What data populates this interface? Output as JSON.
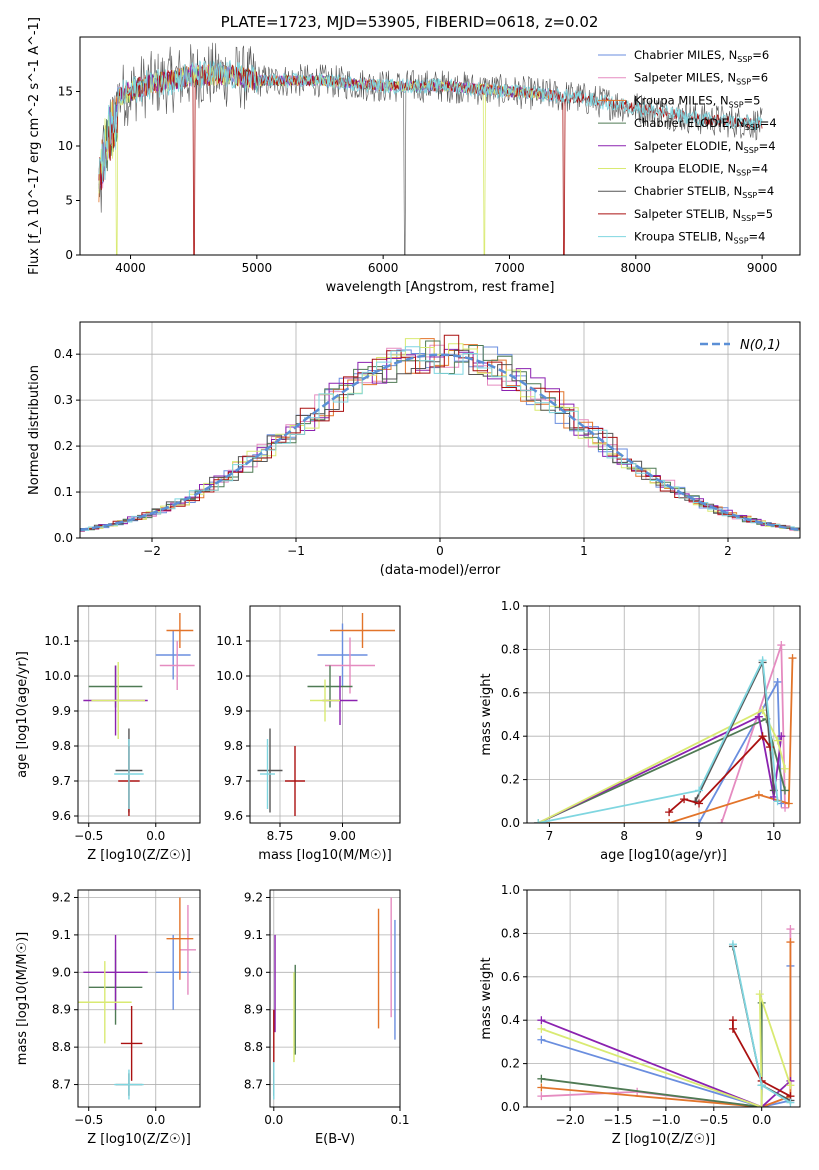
{
  "page": {
    "title": "PLATE=1723, MJD=53905, FIBERID=0618, z=0.02"
  },
  "colors": {
    "chabrier_miles": "#6a8edf",
    "salpeter_miles": "#e58bc0",
    "kroupa_miles": "#e2742a",
    "chabrier_elodie": "#4f7a54",
    "salpeter_elodie": "#8b22b0",
    "kroupa_elodie": "#d9ea72",
    "chabrier_stelib": "#555555",
    "salpeter_stelib": "#aa1111",
    "kroupa_stelib": "#7fd6e0",
    "gauss": "#5b8fd6"
  },
  "chart_data": [
    {
      "id": "spectrum",
      "type": "line",
      "xlabel": "wavelength [Angstrom, rest frame]",
      "ylabel": "Flux [f_λ 10^-17 erg cm^-2 s^-1 A^-1]",
      "xlim": [
        3600,
        9300
      ],
      "ylim": [
        0,
        20
      ],
      "xticks": [
        4000,
        5000,
        6000,
        7000,
        8000,
        9000
      ],
      "yticks": [
        0,
        5,
        10,
        15
      ],
      "grid": false,
      "legend_position": "top-right",
      "data_profile": {
        "x": [
          3750,
          3800,
          3900,
          4000,
          4100,
          4300,
          4500,
          4800,
          5000,
          5200,
          5500,
          6000,
          6500,
          7000,
          7500,
          8000,
          8500,
          9000
        ],
        "y": [
          8,
          12,
          14.5,
          15,
          15.5,
          16,
          16.5,
          16.5,
          16,
          16,
          16,
          15.5,
          15.5,
          15,
          14.5,
          13.5,
          12.5,
          12
        ]
      },
      "series": [
        {
          "name": "Chabrier MILES, N_SSP=6",
          "label_main": "Chabrier MILES, N",
          "label_sub": "SSP",
          "label_tail": "=6",
          "color_key": "chabrier_miles"
        },
        {
          "name": "Salpeter MILES, N_SSP=6",
          "label_main": "Salpeter MILES, N",
          "label_sub": "SSP",
          "label_tail": "=6",
          "color_key": "salpeter_miles"
        },
        {
          "name": "Kroupa MILES, N_SSP=5",
          "label_main": "Kroupa MILES, N",
          "label_sub": "SSP",
          "label_tail": "=5",
          "color_key": "kroupa_miles"
        },
        {
          "name": "Chabrier ELODIE, N_SSP=4",
          "label_main": "Chabrier ELODIE, N",
          "label_sub": "SSP",
          "label_tail": "=4",
          "color_key": "chabrier_elodie"
        },
        {
          "name": "Salpeter ELODIE, N_SSP=4",
          "label_main": "Salpeter ELODIE, N",
          "label_sub": "SSP",
          "label_tail": "=4",
          "color_key": "salpeter_elodie"
        },
        {
          "name": "Kroupa ELODIE, N_SSP=4",
          "label_main": "Kroupa ELODIE, N",
          "label_sub": "SSP",
          "label_tail": "=4",
          "color_key": "kroupa_elodie"
        },
        {
          "name": "Chabrier STELIB, N_SSP=4",
          "label_main": "Chabrier STELIB, N",
          "label_sub": "SSP",
          "label_tail": "=4",
          "color_key": "chabrier_stelib"
        },
        {
          "name": "Salpeter STELIB, N_SSP=5",
          "label_main": "Salpeter STELIB, N",
          "label_sub": "SSP",
          "label_tail": "=5",
          "color_key": "salpeter_stelib"
        },
        {
          "name": "Kroupa STELIB, N_SSP=4",
          "label_main": "Kroupa STELIB, N",
          "label_sub": "SSP",
          "label_tail": "=4",
          "color_key": "kroupa_stelib"
        }
      ]
    },
    {
      "id": "residuals",
      "type": "line",
      "xlabel": "(data-model)/error",
      "ylabel": "Normed distribution",
      "xlim": [
        -2.5,
        2.5
      ],
      "ylim": [
        0,
        0.47
      ],
      "xticks": [
        -2,
        -1,
        0,
        1,
        2
      ],
      "yticks": [
        0.0,
        0.1,
        0.2,
        0.3,
        0.4
      ],
      "grid": true,
      "legend_position": "top-right",
      "legend": "N(0,1)",
      "gauss_mean": 0,
      "gauss_sigma": 1
    },
    {
      "id": "age_vs_Z",
      "type": "scatter",
      "xlabel": "Z [log10(Z/Z☉)]",
      "ylabel": "age [log10(age/yr)]",
      "xlim": [
        -0.58,
        0.33
      ],
      "ylim": [
        9.58,
        10.2
      ],
      "xticks": [
        -0.5,
        0.0
      ],
      "yticks": [
        9.6,
        9.7,
        9.8,
        9.9,
        10.0,
        10.1
      ],
      "grid": true,
      "points": [
        {
          "k": "chabrier_miles",
          "x": 0.13,
          "xe": 0.13,
          "y": 10.06,
          "ye": 0.07
        },
        {
          "k": "salpeter_miles",
          "x": 0.16,
          "xe": 0.13,
          "y": 10.03,
          "ye": 0.07
        },
        {
          "k": "kroupa_miles",
          "x": 0.18,
          "xe": 0.1,
          "y": 10.13,
          "ye": 0.05
        },
        {
          "k": "chabrier_elodie",
          "x": -0.3,
          "xe": 0.2,
          "y": 9.97,
          "ye": 0.06
        },
        {
          "k": "salpeter_elodie",
          "x": -0.3,
          "xe": 0.24,
          "y": 9.93,
          "ye": 0.1
        },
        {
          "k": "kroupa_elodie",
          "x": -0.28,
          "xe": 0.2,
          "y": 9.93,
          "ye": 0.11
        },
        {
          "k": "chabrier_stelib",
          "x": -0.2,
          "xe": 0.1,
          "y": 9.73,
          "ye": 0.12
        },
        {
          "k": "salpeter_stelib",
          "x": -0.2,
          "xe": 0.08,
          "y": 9.7,
          "ye": 0.1
        },
        {
          "k": "kroupa_stelib",
          "x": -0.2,
          "xe": 0.11,
          "y": 9.72,
          "ye": 0.1
        }
      ]
    },
    {
      "id": "age_vs_mass",
      "type": "scatter",
      "xlabel": "mass [log10(M/M☉)]",
      "ylabel": "",
      "xlim": [
        8.63,
        9.23
      ],
      "ylim": [
        9.58,
        10.2
      ],
      "xticks": [
        8.75,
        9.0
      ],
      "yticks": [
        9.6,
        9.7,
        9.8,
        9.9,
        10.0,
        10.1
      ],
      "grid": true,
      "points": [
        {
          "k": "chabrier_miles",
          "x": 9.0,
          "xe": 0.1,
          "y": 10.06,
          "ye": 0.09
        },
        {
          "k": "salpeter_miles",
          "x": 9.03,
          "xe": 0.1,
          "y": 10.03,
          "ye": 0.08
        },
        {
          "k": "kroupa_miles",
          "x": 9.08,
          "xe": 0.13,
          "y": 10.13,
          "ye": 0.05
        },
        {
          "k": "chabrier_elodie",
          "x": 8.95,
          "xe": 0.09,
          "y": 9.97,
          "ye": 0.06
        },
        {
          "k": "salpeter_elodie",
          "x": 8.99,
          "xe": 0.07,
          "y": 9.93,
          "ye": 0.07
        },
        {
          "k": "kroupa_elodie",
          "x": 8.93,
          "xe": 0.06,
          "y": 9.93,
          "ye": 0.06
        },
        {
          "k": "chabrier_stelib",
          "x": 8.71,
          "xe": 0.05,
          "y": 9.73,
          "ye": 0.12
        },
        {
          "k": "salpeter_stelib",
          "x": 8.81,
          "xe": 0.04,
          "y": 9.7,
          "ye": 0.1
        },
        {
          "k": "kroupa_stelib",
          "x": 8.7,
          "xe": 0.03,
          "y": 9.72,
          "ye": 0.1
        }
      ]
    },
    {
      "id": "weight_vs_age",
      "type": "line",
      "xlabel": "age [log10(age/yr)]",
      "ylabel": "mass weight",
      "xlim": [
        6.7,
        10.35
      ],
      "ylim": [
        0,
        1.0
      ],
      "xticks": [
        7,
        8,
        9,
        10
      ],
      "yticks": [
        0.0,
        0.2,
        0.4,
        0.6,
        0.8,
        1.0
      ],
      "grid": true,
      "series": [
        {
          "k": "chabrier_miles",
          "x": [
            6.85,
            9.0,
            10.05,
            10.1
          ],
          "y": [
            0.0,
            0.0,
            0.65,
            0.09
          ]
        },
        {
          "k": "salpeter_miles",
          "x": [
            9.3,
            10.1,
            10.15
          ],
          "y": [
            0.0,
            0.82,
            0.07
          ]
        },
        {
          "k": "kroupa_miles",
          "x": [
            6.85,
            8.6,
            9.8,
            10.2,
            10.25
          ],
          "y": [
            0.0,
            0.0,
            0.13,
            0.09,
            0.76
          ]
        },
        {
          "k": "chabrier_elodie",
          "x": [
            6.85,
            9.9,
            10.15
          ],
          "y": [
            0.0,
            0.48,
            0.15
          ]
        },
        {
          "k": "salpeter_elodie",
          "x": [
            6.85,
            9.8,
            10.0,
            10.1
          ],
          "y": [
            0.0,
            0.49,
            0.12,
            0.4
          ]
        },
        {
          "k": "kroupa_elodie",
          "x": [
            6.85,
            9.85,
            10.05,
            10.15
          ],
          "y": [
            0.0,
            0.52,
            0.38,
            0.25
          ]
        },
        {
          "k": "chabrier_stelib",
          "x": [
            8.95,
            9.85,
            10.0
          ],
          "y": [
            0.1,
            0.74,
            0.15
          ]
        },
        {
          "k": "salpeter_stelib",
          "x": [
            8.6,
            8.8,
            9.0,
            9.85,
            9.95
          ],
          "y": [
            0.05,
            0.11,
            0.09,
            0.4,
            0.35
          ]
        },
        {
          "k": "kroupa_stelib",
          "x": [
            6.85,
            9.0,
            9.85,
            10.05
          ],
          "y": [
            0.0,
            0.15,
            0.75,
            0.1
          ]
        }
      ]
    },
    {
      "id": "mass_vs_Z",
      "type": "scatter",
      "xlabel": "Z [log10(Z/Z☉)]",
      "ylabel": "mass [log10(M/M☉)]",
      "xlim": [
        -0.58,
        0.33
      ],
      "ylim": [
        8.64,
        9.22
      ],
      "xticks": [
        -0.5,
        0.0
      ],
      "yticks": [
        8.7,
        8.8,
        8.9,
        9.0,
        9.1,
        9.2
      ],
      "grid": true,
      "points": [
        {
          "k": "chabrier_miles",
          "x": 0.13,
          "xe": 0.13,
          "y": 9.0,
          "ye": 0.1
        },
        {
          "k": "salpeter_miles",
          "x": 0.24,
          "xe": 0.06,
          "y": 9.06,
          "ye": 0.12
        },
        {
          "k": "kroupa_miles",
          "x": 0.18,
          "xe": 0.1,
          "y": 9.09,
          "ye": 0.11
        },
        {
          "k": "chabrier_elodie",
          "x": -0.3,
          "xe": 0.2,
          "y": 8.96,
          "ye": 0.1
        },
        {
          "k": "salpeter_elodie",
          "x": -0.3,
          "xe": 0.24,
          "y": 9.0,
          "ye": 0.1
        },
        {
          "k": "kroupa_elodie",
          "x": -0.38,
          "xe": 0.2,
          "y": 8.92,
          "ye": 0.11
        },
        {
          "k": "chabrier_stelib",
          "x": -0.2,
          "xe": 0.1,
          "y": 8.7,
          "ye": 0.03
        },
        {
          "k": "salpeter_stelib",
          "x": -0.18,
          "xe": 0.08,
          "y": 8.81,
          "ye": 0.1
        },
        {
          "k": "kroupa_stelib",
          "x": -0.2,
          "xe": 0.11,
          "y": 8.7,
          "ye": 0.04
        }
      ]
    },
    {
      "id": "mass_vs_ebv",
      "type": "scatter",
      "xlabel": "E(B-V)",
      "ylabel": "",
      "xlim": [
        -0.003,
        0.1
      ],
      "ylim": [
        8.64,
        9.22
      ],
      "xticks": [
        0.0,
        0.1
      ],
      "yticks": [
        8.7,
        8.8,
        8.9,
        9.0,
        9.1,
        9.2
      ],
      "grid": true,
      "points": [
        {
          "k": "chabrier_miles",
          "x": 0.096,
          "y": 8.98,
          "ye": 0.16
        },
        {
          "k": "salpeter_miles",
          "x": 0.093,
          "y": 9.04,
          "ye": 0.16
        },
        {
          "k": "kroupa_miles",
          "x": 0.083,
          "y": 9.01,
          "ye": 0.16
        },
        {
          "k": "chabrier_elodie",
          "x": 0.017,
          "y": 8.9,
          "ye": 0.12
        },
        {
          "k": "salpeter_elodie",
          "x": 0.001,
          "y": 8.97,
          "ye": 0.13
        },
        {
          "k": "kroupa_elodie",
          "x": 0.016,
          "y": 8.88,
          "ye": 0.12
        },
        {
          "k": "chabrier_stelib",
          "x": 0.0,
          "y": 8.7,
          "ye": 0.03
        },
        {
          "k": "salpeter_stelib",
          "x": 0.0,
          "y": 8.8,
          "ye": 0.1
        },
        {
          "k": "kroupa_stelib",
          "x": 0.0,
          "y": 8.71,
          "ye": 0.05
        }
      ]
    },
    {
      "id": "weight_vs_Z",
      "type": "line",
      "xlabel": "Z [log10(Z/Z☉)]",
      "ylabel": "mass weight",
      "xlim": [
        -2.45,
        0.4
      ],
      "ylim": [
        0,
        1.0
      ],
      "xticks": [
        -2.0,
        -1.5,
        -1.0,
        -0.5,
        0.0
      ],
      "yticks": [
        0.0,
        0.2,
        0.4,
        0.6,
        0.8,
        1.0
      ],
      "grid": true,
      "series": [
        {
          "k": "chabrier_miles",
          "x": [
            -2.3,
            0.0,
            0.3,
            0.3
          ],
          "y": [
            0.31,
            0.0,
            0.03,
            0.65
          ]
        },
        {
          "k": "salpeter_miles",
          "x": [
            -2.3,
            -1.3,
            0.0,
            0.3,
            0.3
          ],
          "y": [
            0.05,
            0.07,
            0.0,
            0.05,
            0.82
          ]
        },
        {
          "k": "kroupa_miles",
          "x": [
            -2.3,
            0.0,
            0.3,
            0.3
          ],
          "y": [
            0.09,
            0.0,
            0.05,
            0.76
          ]
        },
        {
          "k": "chabrier_elodie",
          "x": [
            -2.3,
            0.0,
            0.0
          ],
          "y": [
            0.13,
            0.0,
            0.48
          ]
        },
        {
          "k": "salpeter_elodie",
          "x": [
            -2.3,
            0.0,
            0.3
          ],
          "y": [
            0.4,
            0.0,
            0.12
          ]
        },
        {
          "k": "kroupa_elodie",
          "x": [
            -2.3,
            0.0,
            -0.02,
            0.3
          ],
          "y": [
            0.36,
            0.0,
            0.52,
            0.1
          ]
        },
        {
          "k": "chabrier_stelib",
          "x": [
            -0.3,
            0.0,
            0.3
          ],
          "y": [
            0.74,
            0.1,
            0.03
          ]
        },
        {
          "k": "salpeter_stelib",
          "x": [
            -0.3,
            -0.3,
            0.0,
            0.3
          ],
          "y": [
            0.4,
            0.36,
            0.12,
            0.05
          ]
        },
        {
          "k": "kroupa_stelib",
          "x": [
            -0.3,
            0.0,
            0.3
          ],
          "y": [
            0.75,
            0.1,
            0.02
          ]
        }
      ]
    }
  ]
}
